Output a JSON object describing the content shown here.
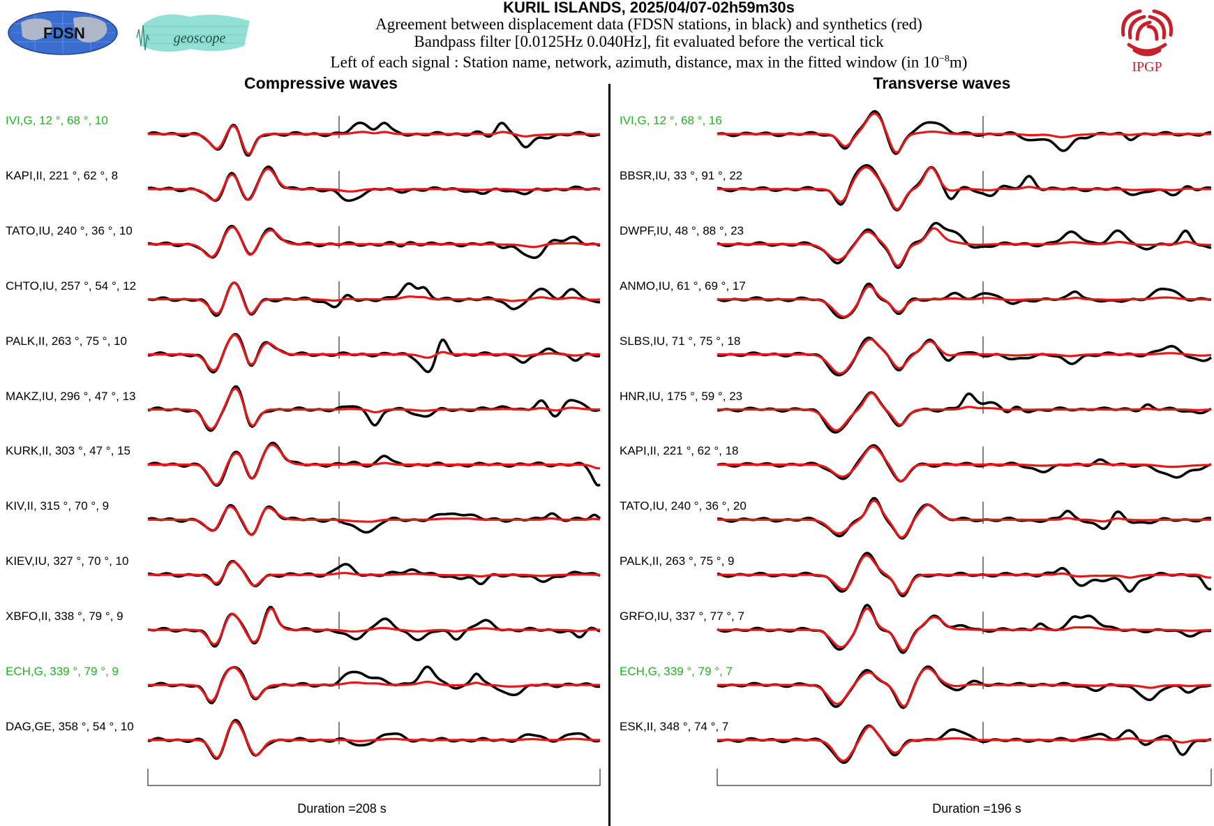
{
  "header": {
    "title": "KURIL ISLANDS, 2025/04/07-02h59m30s",
    "line1": "Agreement between displacement data (FDSN stations, in black) and synthetics (red)",
    "line2": "Bandpass filter [0.0125Hz 0.040Hz], fit evaluated before the vertical tick",
    "line3_prefix": "Left of each signal : Station name, network, azimuth, distance, max in the fitted window (in 10",
    "line3_exp": "−8",
    "line3_suffix": "m)"
  },
  "logos": {
    "fdsn_text": "FDSN",
    "geoscope_text": "geoscope",
    "ipgp_text": "IPGP"
  },
  "colors": {
    "data": "#000000",
    "synthetic": "#e8181a",
    "highlight": "#1fb31f",
    "fdsn_blue": "#3a6fd1",
    "geoscope_teal": "#7fd9cb",
    "ipgp_red": "#c8202a"
  },
  "panels": [
    {
      "title": "Compressive waves",
      "duration": "Duration =208 s",
      "stations": [
        {
          "label": "IVI,G, 12 °, 68 °, 10",
          "highlight": true
        },
        {
          "label": "KAPI,II, 221 °, 62 °, 8",
          "highlight": false
        },
        {
          "label": "TATO,IU, 240 °, 36 °, 10",
          "highlight": false
        },
        {
          "label": "CHTO,IU, 257 °, 54 °, 12",
          "highlight": false
        },
        {
          "label": "PALK,II, 263 °, 75 °, 10",
          "highlight": false
        },
        {
          "label": "MAKZ,IU, 296 °, 47 °, 13",
          "highlight": false
        },
        {
          "label": "KURK,II, 303 °, 47 °, 15",
          "highlight": false
        },
        {
          "label": "KIV,II, 315 °, 70 °, 9",
          "highlight": false
        },
        {
          "label": "KIEV,IU, 327 °, 70 °, 10",
          "highlight": false
        },
        {
          "label": "XBFO,II, 338 °, 79 °, 9",
          "highlight": false
        },
        {
          "label": "ECH,G, 339 °, 79 °, 9",
          "highlight": true
        },
        {
          "label": "DAG,GE, 358 °, 54 °, 10",
          "highlight": false
        }
      ]
    },
    {
      "title": "Transverse waves",
      "duration": "Duration =196 s",
      "stations": [
        {
          "label": "IVI,G, 12 °, 68 °, 16",
          "highlight": true
        },
        {
          "label": "BBSR,IU, 33 °, 91 °, 22",
          "highlight": false
        },
        {
          "label": "DWPF,IU, 48 °, 88 °, 23",
          "highlight": false
        },
        {
          "label": "ANMO,IU, 61 °, 69 °, 17",
          "highlight": false
        },
        {
          "label": "SLBS,IU, 71 °, 75 °, 18",
          "highlight": false
        },
        {
          "label": "HNR,IU, 175 °, 59 °, 23",
          "highlight": false
        },
        {
          "label": "KAPI,II, 221 °, 62 °, 18",
          "highlight": false
        },
        {
          "label": "TATO,IU, 240 °, 36 °, 20",
          "highlight": false
        },
        {
          "label": "PALK,II, 263 °, 75 °, 9",
          "highlight": false
        },
        {
          "label": "GRFO,IU, 337 °, 77 °, 7",
          "highlight": false
        },
        {
          "label": "ECH,G, 339 °, 79 °, 7",
          "highlight": true
        },
        {
          "label": "ESK,II, 348 °, 74 °, 7",
          "highlight": false
        }
      ]
    }
  ],
  "chart_data": [
    {
      "type": "line",
      "title": "Compressive waves",
      "xlabel": "Duration =208 s",
      "duration_s": 208,
      "fit_window_fraction": 0.42,
      "series": [
        {
          "name": "data"
        },
        {
          "name": "synthetics"
        }
      ],
      "traces": [
        {
          "station": "IVI,G",
          "azimuth_deg": 12,
          "distance_deg": 68,
          "max": 10
        },
        {
          "station": "KAPI,II",
          "azimuth_deg": 221,
          "distance_deg": 62,
          "max": 8
        },
        {
          "station": "TATO,IU",
          "azimuth_deg": 240,
          "distance_deg": 36,
          "max": 10
        },
        {
          "station": "CHTO,IU",
          "azimuth_deg": 257,
          "distance_deg": 54,
          "max": 12
        },
        {
          "station": "PALK,II",
          "azimuth_deg": 263,
          "distance_deg": 75,
          "max": 10
        },
        {
          "station": "MAKZ,IU",
          "azimuth_deg": 296,
          "distance_deg": 47,
          "max": 13
        },
        {
          "station": "KURK,II",
          "azimuth_deg": 303,
          "distance_deg": 47,
          "max": 15
        },
        {
          "station": "KIV,II",
          "azimuth_deg": 315,
          "distance_deg": 70,
          "max": 9
        },
        {
          "station": "KIEV,IU",
          "azimuth_deg": 327,
          "distance_deg": 70,
          "max": 10
        },
        {
          "station": "XBFO,II",
          "azimuth_deg": 338,
          "distance_deg": 79,
          "max": 9
        },
        {
          "station": "ECH,G",
          "azimuth_deg": 339,
          "distance_deg": 79,
          "max": 9
        },
        {
          "station": "DAG,GE",
          "azimuth_deg": 358,
          "distance_deg": 54,
          "max": 10
        }
      ]
    },
    {
      "type": "line",
      "title": "Transverse waves",
      "xlabel": "Duration =196 s",
      "duration_s": 196,
      "fit_window_fraction": 0.49,
      "series": [
        {
          "name": "data"
        },
        {
          "name": "synthetics"
        }
      ],
      "traces": [
        {
          "station": "IVI,G",
          "azimuth_deg": 12,
          "distance_deg": 68,
          "max": 16
        },
        {
          "station": "BBSR,IU",
          "azimuth_deg": 33,
          "distance_deg": 91,
          "max": 22
        },
        {
          "station": "DWPF,IU",
          "azimuth_deg": 48,
          "distance_deg": 88,
          "max": 23
        },
        {
          "station": "ANMO,IU",
          "azimuth_deg": 61,
          "distance_deg": 69,
          "max": 17
        },
        {
          "station": "SLBS,IU",
          "azimuth_deg": 71,
          "distance_deg": 75,
          "max": 18
        },
        {
          "station": "HNR,IU",
          "azimuth_deg": 175,
          "distance_deg": 59,
          "max": 23
        },
        {
          "station": "KAPI,II",
          "azimuth_deg": 221,
          "distance_deg": 62,
          "max": 18
        },
        {
          "station": "TATO,IU",
          "azimuth_deg": 240,
          "distance_deg": 36,
          "max": 20
        },
        {
          "station": "PALK,II",
          "azimuth_deg": 263,
          "distance_deg": 75,
          "max": 9
        },
        {
          "station": "GRFO,IU",
          "azimuth_deg": 337,
          "distance_deg": 77,
          "max": 7
        },
        {
          "station": "ECH,G",
          "azimuth_deg": 339,
          "distance_deg": 79,
          "max": 7
        },
        {
          "station": "ESK,II",
          "azimuth_deg": 348,
          "distance_deg": 74,
          "max": 7
        }
      ]
    }
  ]
}
